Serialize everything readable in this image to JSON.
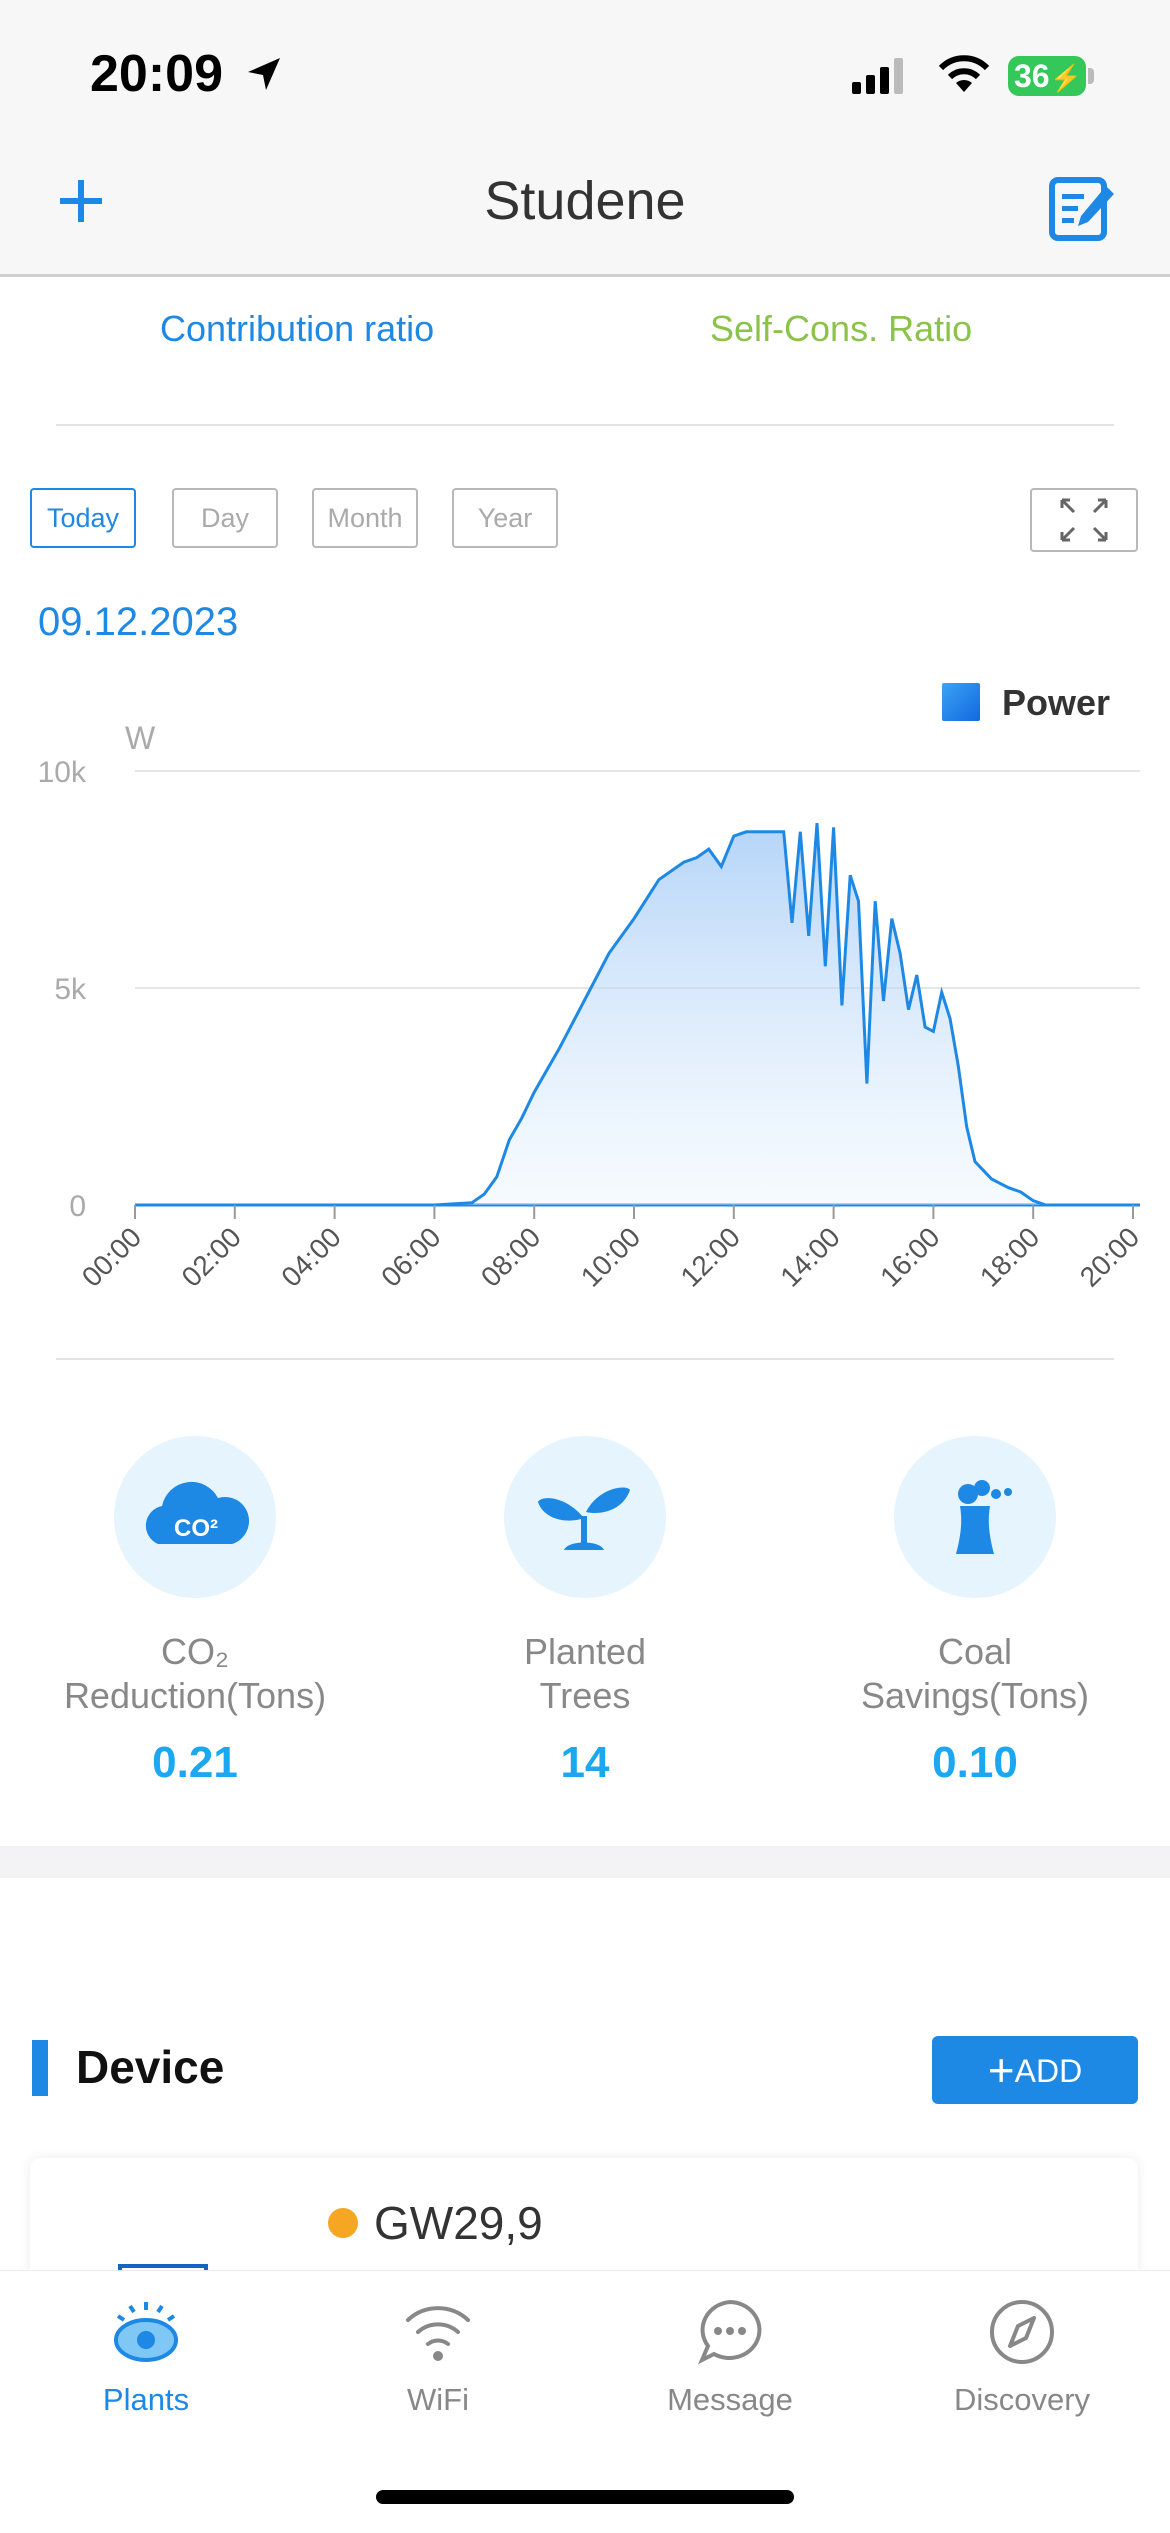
{
  "status_bar": {
    "time": "20:09",
    "battery": "36"
  },
  "nav": {
    "title": "Studene"
  },
  "ratio_tabs": {
    "contribution": "Contribution ratio",
    "self_cons": "Self-Cons. Ratio"
  },
  "period_tabs": [
    "Today",
    "Day",
    "Month",
    "Year"
  ],
  "selected_period": "Today",
  "date": "09.12.2023",
  "legend": "Power",
  "colors": {
    "accent": "#1e88e5",
    "self_cons": "#8bc34a",
    "stat_value": "#1ba8f0",
    "dot": "#f5a623"
  },
  "chart_data": {
    "type": "area",
    "ylabel": "W",
    "y_ticks": [
      "10k",
      "5k",
      "0"
    ],
    "ylim": [
      0,
      10000
    ],
    "x_ticks": [
      "00:00",
      "02:00",
      "04:00",
      "06:00",
      "08:00",
      "10:00",
      "12:00",
      "14:00",
      "16:00",
      "18:00",
      "20:00"
    ],
    "series": [
      {
        "name": "Power",
        "x": [
          "00:00",
          "02:00",
          "04:00",
          "06:00",
          "06:45",
          "07:00",
          "07:15",
          "07:30",
          "07:45",
          "08:00",
          "08:30",
          "09:00",
          "09:30",
          "10:00",
          "10:30",
          "11:00",
          "11:15",
          "11:30",
          "11:45",
          "12:00",
          "12:15",
          "12:30",
          "12:45",
          "13:00",
          "13:10",
          "13:20",
          "13:30",
          "13:40",
          "13:50",
          "14:00",
          "14:10",
          "14:20",
          "14:30",
          "14:40",
          "14:50",
          "15:00",
          "15:10",
          "15:20",
          "15:30",
          "15:40",
          "15:50",
          "16:00",
          "16:10",
          "16:20",
          "16:30",
          "16:40",
          "16:50",
          "17:00",
          "17:10",
          "17:20",
          "17:30",
          "17:45",
          "18:00",
          "18:15",
          "18:30",
          "18:45",
          "19:00",
          "19:30",
          "20:00"
        ],
        "values": [
          0,
          0,
          0,
          0,
          50,
          250,
          650,
          1500,
          2000,
          2600,
          3600,
          4700,
          5800,
          6600,
          7500,
          7900,
          8000,
          8200,
          7800,
          8500,
          8600,
          8600,
          8600,
          8600,
          6500,
          8600,
          6200,
          8800,
          5500,
          8700,
          4600,
          7600,
          7000,
          2800,
          7000,
          4700,
          6600,
          5800,
          4500,
          5300,
          4100,
          4000,
          4900,
          4300,
          3200,
          1800,
          1000,
          800,
          600,
          500,
          400,
          300,
          100,
          0,
          0,
          0,
          0,
          0,
          0
        ]
      }
    ]
  },
  "stats": [
    {
      "label_lines": [
        "CO₂",
        "Reduction(Tons)"
      ],
      "value": "0.21",
      "icon": "co2-cloud-icon"
    },
    {
      "label_lines": [
        "Planted",
        "Trees"
      ],
      "value": "14",
      "icon": "sprout-icon"
    },
    {
      "label_lines": [
        "Coal",
        "Savings(Tons)"
      ],
      "value": "0.10",
      "icon": "power-plant-icon"
    }
  ],
  "device": {
    "section_title": "Device",
    "add_label": "ADD",
    "name": "GW29,9"
  },
  "tabbar": [
    {
      "label": "Plants",
      "icon": "plants-eye-icon",
      "active": true
    },
    {
      "label": "WiFi",
      "icon": "wifi-icon",
      "active": false
    },
    {
      "label": "Message",
      "icon": "message-icon",
      "active": false
    },
    {
      "label": "Discovery",
      "icon": "compass-icon",
      "active": false
    }
  ]
}
